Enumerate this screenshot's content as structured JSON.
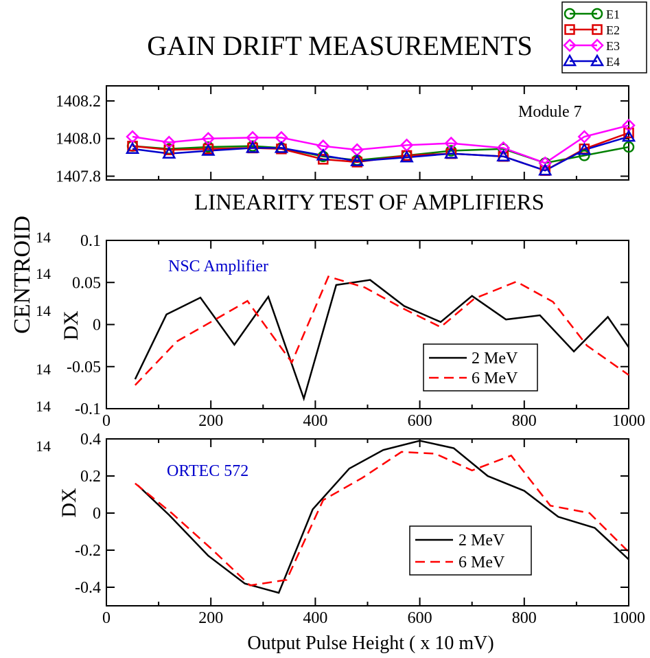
{
  "figure": {
    "title": "GAIN DRIFT MEASUREMENTS",
    "subtitle": "LINEARITY TEST OF AMPLIFIERS",
    "side_label": "CENTROID",
    "ghost_ticks": [
      "14",
      "14",
      "14",
      "14",
      "14",
      "14"
    ],
    "colors": {
      "E1": "#008000",
      "E2": "#dd0000",
      "E3": "#ff00ff",
      "E4": "#0000cc",
      "black": "#000000",
      "red": "#ff0000",
      "blue": "#0000cc"
    }
  },
  "chart_data": [
    {
      "id": "gain",
      "type": "line",
      "annotation": "Module 7",
      "ylim": [
        1407.78,
        1408.28
      ],
      "yticks": [
        1407.8,
        1408.0,
        1408.2
      ],
      "xlim": [
        0,
        1000
      ],
      "grid": false,
      "legend": "top-right",
      "x": [
        50,
        120,
        195,
        280,
        335,
        415,
        480,
        575,
        660,
        760,
        840,
        915,
        1000
      ],
      "series": [
        {
          "name": "E1",
          "marker": "circle",
          "color": "#008000",
          "values": [
            1407.96,
            1407.945,
            1407.955,
            1407.96,
            1407.95,
            1407.905,
            1407.885,
            1407.91,
            1407.935,
            1407.945,
            1407.87,
            1407.91,
            1407.955
          ]
        },
        {
          "name": "E2",
          "marker": "square",
          "color": "#dd0000",
          "values": [
            1407.96,
            1407.94,
            1407.945,
            1407.95,
            1407.945,
            1407.89,
            1407.875,
            1407.91,
            1407.92,
            1407.905,
            1407.83,
            1407.945,
            1408.03
          ]
        },
        {
          "name": "E3",
          "marker": "diamond",
          "color": "#ff00ff",
          "values": [
            1408.01,
            1407.98,
            1408.0,
            1408.005,
            1408.005,
            1407.96,
            1407.94,
            1407.965,
            1407.975,
            1407.95,
            1407.87,
            1408.01,
            1408.07
          ]
        },
        {
          "name": "E4",
          "marker": "triangle",
          "color": "#0000cc",
          "values": [
            1407.945,
            1407.92,
            1407.935,
            1407.95,
            1407.95,
            1407.91,
            1407.88,
            1407.9,
            1407.92,
            1407.905,
            1407.83,
            1407.94,
            1408.01
          ]
        }
      ]
    },
    {
      "id": "nsc",
      "type": "line",
      "annotation": "NSC Amplifier",
      "ylabel": "DX",
      "xlim": [
        0,
        1000
      ],
      "ylim": [
        -0.1,
        0.1
      ],
      "xticks": [
        0,
        200,
        400,
        600,
        800,
        1000
      ],
      "yticks": [
        -0.1,
        -0.05,
        0,
        0.05,
        0.1
      ],
      "ytick_labels": [
        "-0.1",
        "-0.05",
        "0",
        "0.05",
        "0.1"
      ],
      "grid": false,
      "legend": "bottom-right",
      "series": [
        {
          "name": "2 MeV",
          "style": "solid",
          "color": "#000000",
          "x": [
            55,
            115,
            180,
            245,
            310,
            378,
            440,
            505,
            570,
            640,
            700,
            765,
            830,
            895,
            960,
            1000
          ],
          "values": [
            -0.065,
            0.012,
            0.032,
            -0.024,
            0.033,
            -0.088,
            0.047,
            0.053,
            0.022,
            0.003,
            0.034,
            0.006,
            0.011,
            -0.032,
            0.009,
            -0.027
          ]
        },
        {
          "name": "6 MeV",
          "style": "dashed",
          "color": "#ff0000",
          "x": [
            55,
            135,
            200,
            270,
            355,
            425,
            495,
            565,
            640,
            705,
            785,
            855,
            920,
            1000
          ],
          "values": [
            -0.072,
            -0.02,
            0.003,
            0.028,
            -0.045,
            0.057,
            0.044,
            0.02,
            -0.003,
            0.031,
            0.051,
            0.027,
            -0.025,
            -0.06
          ]
        }
      ]
    },
    {
      "id": "ortec",
      "type": "line",
      "annotation": "ORTEC 572",
      "ylabel": "DX",
      "xlabel": "Output  Pulse  Height ( x 10 mV)",
      "xlim": [
        0,
        1000
      ],
      "ylim": [
        -0.5,
        0.4
      ],
      "xticks": [
        0,
        200,
        400,
        600,
        800,
        1000
      ],
      "yticks": [
        -0.4,
        -0.2,
        0,
        0.2,
        0.4
      ],
      "ytick_labels": [
        "-0.4",
        "-0.2",
        "0",
        "0.2",
        "0.4"
      ],
      "grid": false,
      "legend": "bottom-right",
      "series": [
        {
          "name": "2 MeV",
          "style": "solid",
          "color": "#000000",
          "x": [
            60,
            120,
            195,
            265,
            330,
            395,
            465,
            530,
            600,
            665,
            730,
            800,
            865,
            935,
            1000
          ],
          "values": [
            0.15,
            -0.01,
            -0.23,
            -0.38,
            -0.43,
            0.02,
            0.24,
            0.34,
            0.39,
            0.35,
            0.2,
            0.12,
            -0.02,
            -0.08,
            -0.25
          ]
        },
        {
          "name": "6 MeV",
          "style": "dashed",
          "color": "#ff0000",
          "x": [
            55,
            125,
            200,
            275,
            345,
            415,
            490,
            565,
            630,
            700,
            775,
            850,
            925,
            1000
          ],
          "values": [
            0.16,
            0.0,
            -0.19,
            -0.39,
            -0.36,
            0.07,
            0.19,
            0.33,
            0.32,
            0.23,
            0.31,
            0.04,
            0.0,
            -0.21
          ]
        }
      ]
    }
  ]
}
